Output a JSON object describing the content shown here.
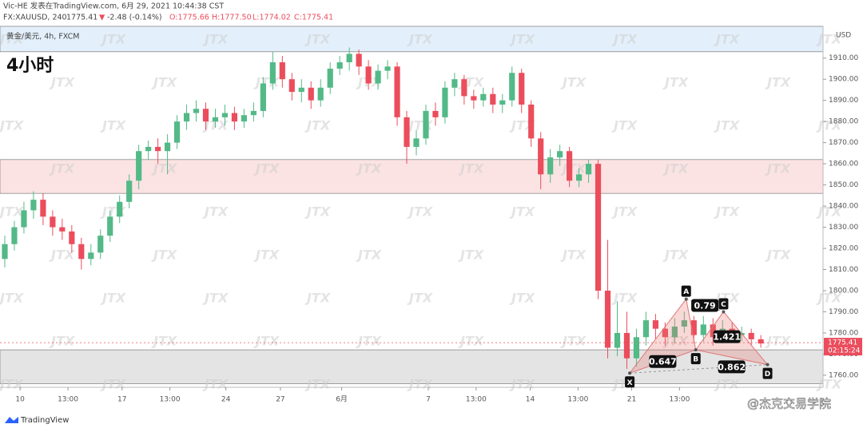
{
  "chart_data": {
    "type": "candlestick",
    "header": "Vic-HE 发表在TradingView.com, 6月 29, 2021 10:44:38 CST",
    "symbol": "FX:XAUUSD, 240",
    "last": "1775.41",
    "change_arrow": "▼",
    "change": "-2.48 (-0.14%)",
    "ohlc_labels": [
      "O:1775.66",
      "H:1777.50",
      "L:1774.02",
      "C:1775.41"
    ],
    "legend_title": "黄金/美元, 4h, FXCM",
    "timeframe": "4小时",
    "currency": "USD",
    "price_label": "1775.41",
    "countdown": "02:15:24",
    "brand": "TradingView",
    "watermark": "JTX",
    "author_mark": "@杰克交易学院",
    "up_color": "#53b987",
    "down_color": "#eb4d5c",
    "open": [
      1815,
      1822,
      1830,
      1838,
      1843,
      1835,
      1830,
      1828,
      1822,
      1815,
      1818,
      1826,
      1835,
      1842,
      1852,
      1866,
      1868,
      1866,
      1870,
      1880,
      1884,
      1886,
      1880,
      1882,
      1884,
      1880,
      1883,
      1885,
      1898,
      1908,
      1900,
      1894,
      1896,
      1890,
      1896,
      1905,
      1908,
      1912,
      1906,
      1898,
      1904,
      1906,
      1882,
      1868,
      1872,
      1885,
      1882,
      1896,
      1900,
      1892,
      1890,
      1893,
      1888,
      1890,
      1903,
      1888,
      1872,
      1855,
      1863,
      1866,
      1852,
      1855,
      1860,
      1800,
      1773,
      1780,
      1768,
      1778,
      1786,
      1782,
      1778,
      1783,
      1786,
      1779,
      1784,
      1778,
      1782,
      1779,
      1780,
      1777
    ],
    "high": [
      1826,
      1833,
      1842,
      1847,
      1846,
      1838,
      1834,
      1831,
      1825,
      1822,
      1829,
      1838,
      1845,
      1855,
      1869,
      1871,
      1872,
      1874,
      1883,
      1888,
      1890,
      1889,
      1886,
      1888,
      1887,
      1886,
      1889,
      1901,
      1913,
      1911,
      1903,
      1900,
      1899,
      1900,
      1908,
      1911,
      1915,
      1914,
      1909,
      1907,
      1909,
      1908,
      1885,
      1876,
      1888,
      1889,
      1899,
      1903,
      1902,
      1895,
      1896,
      1896,
      1893,
      1906,
      1905,
      1890,
      1875,
      1867,
      1869,
      1868,
      1858,
      1862,
      1862,
      1824,
      1795,
      1790,
      1782,
      1790,
      1789,
      1785,
      1787,
      1790,
      1788,
      1788,
      1787,
      1786,
      1785,
      1783,
      1782,
      1779
    ],
    "low": [
      1811,
      1819,
      1827,
      1834,
      1831,
      1826,
      1824,
      1818,
      1810,
      1812,
      1815,
      1823,
      1832,
      1839,
      1848,
      1862,
      1860,
      1855,
      1867,
      1876,
      1880,
      1876,
      1877,
      1878,
      1876,
      1877,
      1880,
      1882,
      1895,
      1896,
      1890,
      1889,
      1886,
      1887,
      1893,
      1902,
      1904,
      1902,
      1895,
      1895,
      1900,
      1878,
      1860,
      1864,
      1869,
      1878,
      1879,
      1892,
      1888,
      1886,
      1887,
      1884,
      1884,
      1887,
      1884,
      1868,
      1848,
      1851,
      1859,
      1849,
      1849,
      1851,
      1796,
      1768,
      1769,
      1763,
      1764,
      1774,
      1777,
      1774,
      1775,
      1780,
      1775,
      1776,
      1774,
      1775,
      1776,
      1776,
      1774,
      1773
    ],
    "close": [
      1822,
      1830,
      1838,
      1843,
      1835,
      1830,
      1828,
      1822,
      1815,
      1818,
      1826,
      1835,
      1842,
      1852,
      1866,
      1868,
      1866,
      1870,
      1880,
      1884,
      1886,
      1880,
      1882,
      1884,
      1880,
      1883,
      1885,
      1898,
      1908,
      1900,
      1894,
      1896,
      1890,
      1896,
      1905,
      1908,
      1912,
      1906,
      1898,
      1904,
      1906,
      1882,
      1868,
      1872,
      1885,
      1882,
      1896,
      1900,
      1892,
      1890,
      1893,
      1888,
      1890,
      1903,
      1888,
      1872,
      1855,
      1863,
      1866,
      1852,
      1855,
      1860,
      1800,
      1773,
      1780,
      1768,
      1778,
      1786,
      1782,
      1778,
      1783,
      1786,
      1779,
      1784,
      1778,
      1782,
      1779,
      1780,
      1777,
      1775
    ],
    "xlim": [
      -0.5,
      85.5
    ],
    "xticks": [
      {
        "value": 1.6,
        "label": "10"
      },
      {
        "value": 6.6,
        "label": "13:00"
      },
      {
        "value": 12.25,
        "label": "17"
      },
      {
        "value": 17.25,
        "label": "13:00"
      },
      {
        "value": 23.1,
        "label": "24"
      },
      {
        "value": 28.8,
        "label": "27"
      },
      {
        "value": 35.2,
        "label": "6月"
      },
      {
        "value": 44.25,
        "label": "7"
      },
      {
        "value": 49.25,
        "label": "13:00"
      },
      {
        "value": 54.9,
        "label": "14"
      },
      {
        "value": 59.9,
        "label": "13:00"
      },
      {
        "value": 65.5,
        "label": "21"
      },
      {
        "value": 70.5,
        "label": "13:00"
      }
    ],
    "ylim": [
      1754.3,
      1925
    ],
    "yticks": [
      {
        "value": 1760,
        "label": "1760.00"
      },
      {
        "value": 1770,
        "label": "1770.00"
      },
      {
        "value": 1780,
        "label": "1780.00"
      },
      {
        "value": 1790,
        "label": "1790.00"
      },
      {
        "value": 1800,
        "label": "1800.00"
      },
      {
        "value": 1810,
        "label": "1810.00"
      },
      {
        "value": 1820,
        "label": "1820.00"
      },
      {
        "value": 1830,
        "label": "1830.00"
      },
      {
        "value": 1840,
        "label": "1840.00"
      },
      {
        "value": 1850,
        "label": "1850.00"
      },
      {
        "value": 1860,
        "label": "1860.00"
      },
      {
        "value": 1870,
        "label": "1870.00"
      },
      {
        "value": 1880,
        "label": "1880.00"
      },
      {
        "value": 1890,
        "label": "1890.00"
      },
      {
        "value": 1900,
        "label": "1900.00"
      },
      {
        "value": 1910,
        "label": "1910.00"
      }
    ],
    "current_price": 1775.41,
    "zones": [
      {
        "from": 1913,
        "to": 1925,
        "color": "#e3f0fb"
      },
      {
        "from": 1846,
        "to": 1862,
        "color": "#fbe3e3"
      },
      {
        "from": 1756,
        "to": 1772,
        "color": "#e4e4e4"
      }
    ],
    "pattern": {
      "points": [
        {
          "label": "X",
          "x": 65.3,
          "y": 1761
        },
        {
          "label": "A",
          "x": 71.2,
          "y": 1796
        },
        {
          "label": "B",
          "x": 72.2,
          "y": 1772
        },
        {
          "label": "C",
          "x": 75.1,
          "y": 1790
        },
        {
          "label": "D",
          "x": 79.7,
          "y": 1765
        }
      ],
      "ratios": [
        "0.647",
        "0.79",
        "0.862",
        "1.421"
      ]
    }
  }
}
